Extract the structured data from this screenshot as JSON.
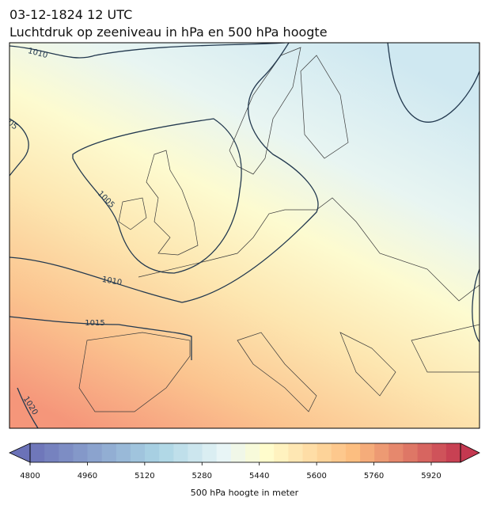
{
  "header": {
    "line1": "03-12-1824 12 UTC",
    "line2": "Luchtdruk op zeeniveau in hPa en 500 hPa hoogte"
  },
  "map": {
    "isobar_labels": [
      "1010",
      "05",
      "1005",
      "1010",
      "1015",
      "1020"
    ]
  },
  "colorbar": {
    "ticks": [
      4800,
      4960,
      5120,
      5280,
      5440,
      5600,
      5760,
      5920
    ],
    "label": "500 hPa hoogte in meter"
  }
}
